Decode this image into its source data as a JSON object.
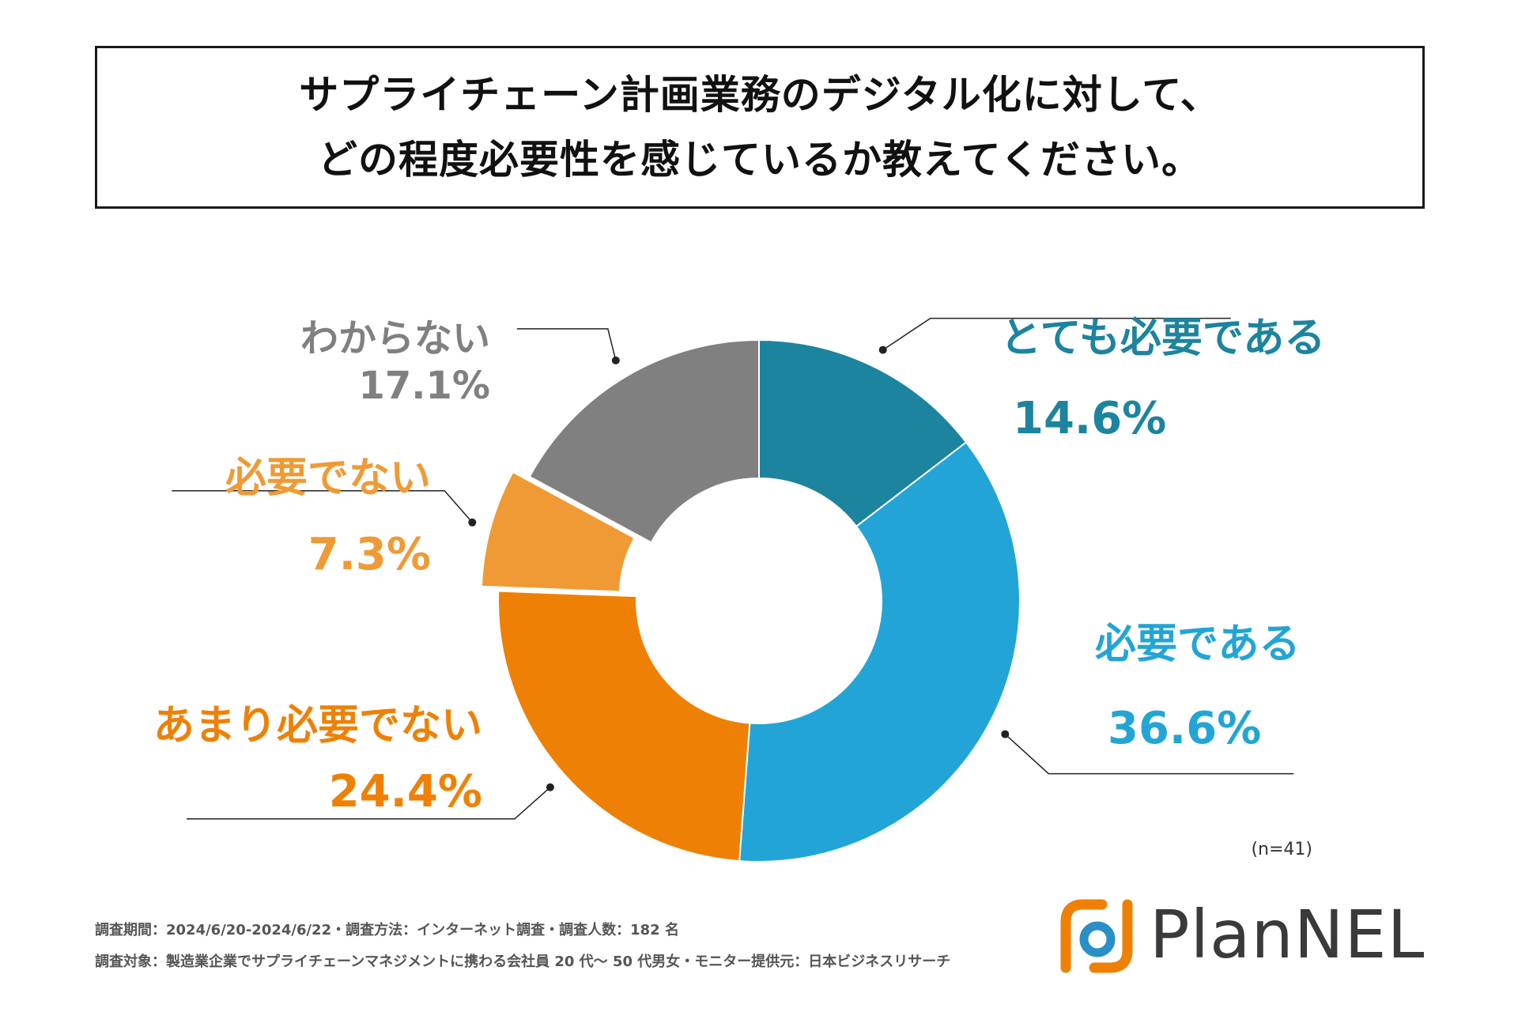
{
  "title": {
    "line1": "サプライチェーン計画業務のデジタル化に対して、",
    "line2": "どの程度必要性を感じているか教えてください。"
  },
  "chart_data": {
    "type": "pie",
    "variant": "donut",
    "categories": [
      "とても必要である",
      "必要である",
      "あまり必要でない",
      "必要でない",
      "わからない"
    ],
    "values": [
      14.6,
      36.6,
      24.4,
      7.3,
      17.1
    ],
    "value_labels": [
      "14.6%",
      "36.6%",
      "24.4%",
      "7.3%",
      "17.1%"
    ],
    "colors": [
      "#1c849e",
      "#22a5d6",
      "#ee8105",
      "#f09a35",
      "#808080"
    ],
    "label_colors": [
      "#1c849e",
      "#22a5d6",
      "#ee8105",
      "#f09a35",
      "#808080"
    ],
    "exploded": [
      false,
      false,
      false,
      true,
      false
    ],
    "legend": "none",
    "sample_note": "(n=41)"
  },
  "footer": {
    "line1": "調査期間：2024/6/20-2024/6/22・調査方法：インターネット調査・調査人数：182 名",
    "line2": "調査対象：製造業企業でサプライチェーンマネジメントに携わる会社員 20 代〜 50 代男女・モニター提供元：日本ビジネスリサーチ"
  },
  "brand": {
    "name": "PlanNEL",
    "logo_orange": "#ee8105",
    "logo_blue": "#2a8fc6"
  }
}
